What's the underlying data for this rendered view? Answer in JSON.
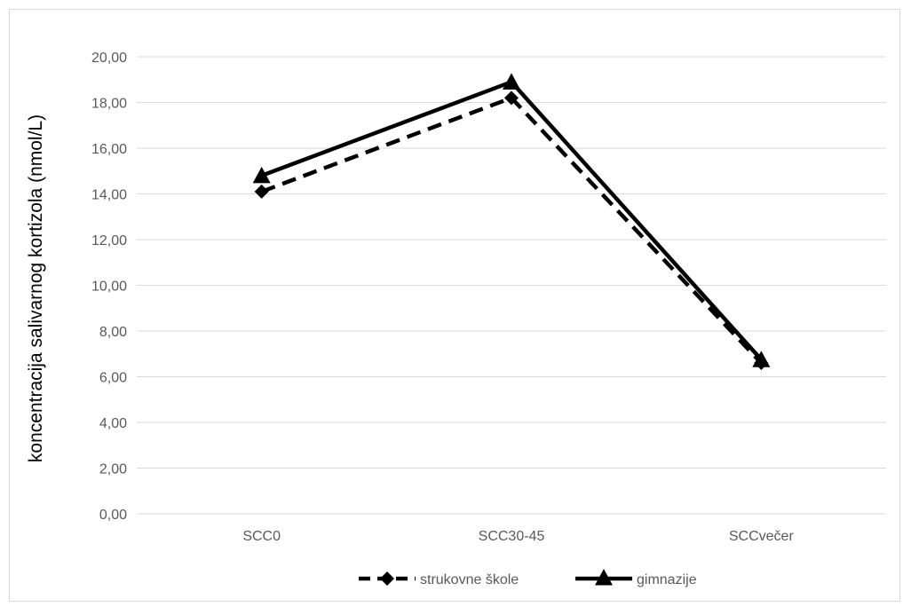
{
  "chart_data": {
    "type": "line",
    "title": "",
    "xlabel": "",
    "ylabel": "koncentracija salivarnog kortizola (nmol/L)",
    "categories": [
      "SCC0",
      "SCC30-45",
      "SCCvečer"
    ],
    "ylim": [
      0,
      20
    ],
    "ytick_step": 2,
    "ytick_labels": [
      "0,00",
      "2,00",
      "4,00",
      "6,00",
      "8,00",
      "10,00",
      "12,00",
      "14,00",
      "16,00",
      "18,00",
      "20,00"
    ],
    "grid": true,
    "legend_position": "bottom",
    "series": [
      {
        "name": "strukovne škole",
        "values": [
          14.1,
          18.2,
          6.6
        ],
        "line_style": "dashed",
        "marker": "diamond",
        "color": "#000000"
      },
      {
        "name": "gimnazije",
        "values": [
          14.8,
          18.9,
          6.75
        ],
        "line_style": "solid",
        "marker": "triangle",
        "color": "#000000"
      }
    ]
  }
}
